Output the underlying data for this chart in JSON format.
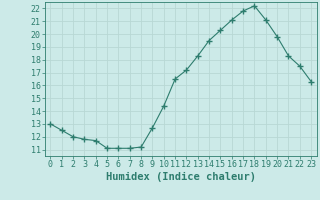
{
  "x": [
    0,
    1,
    2,
    3,
    4,
    5,
    6,
    7,
    8,
    9,
    10,
    11,
    12,
    13,
    14,
    15,
    16,
    17,
    18,
    19,
    20,
    21,
    22,
    23
  ],
  "y": [
    13.0,
    12.5,
    12.0,
    11.8,
    11.7,
    11.1,
    11.1,
    11.1,
    11.2,
    12.7,
    14.4,
    16.5,
    17.2,
    18.3,
    19.5,
    20.3,
    21.1,
    21.8,
    22.2,
    21.1,
    19.8,
    18.3,
    17.5,
    16.3
  ],
  "line_color": "#2e7d6e",
  "marker": "+",
  "marker_size": 4,
  "bg_color": "#cceae8",
  "grid_color": "#b8d8d4",
  "xlabel": "Humidex (Indice chaleur)",
  "xlim": [
    -0.5,
    23.5
  ],
  "ylim": [
    10.5,
    22.5
  ],
  "yticks": [
    11,
    12,
    13,
    14,
    15,
    16,
    17,
    18,
    19,
    20,
    21,
    22
  ],
  "xticks": [
    0,
    1,
    2,
    3,
    4,
    5,
    6,
    7,
    8,
    9,
    10,
    11,
    12,
    13,
    14,
    15,
    16,
    17,
    18,
    19,
    20,
    21,
    22,
    23
  ],
  "xtick_labels": [
    "0",
    "1",
    "2",
    "3",
    "4",
    "5",
    "6",
    "7",
    "8",
    "9",
    "10",
    "11",
    "12",
    "13",
    "14",
    "15",
    "16",
    "17",
    "18",
    "19",
    "20",
    "21",
    "22",
    "23"
  ],
  "xlabel_fontsize": 7.5,
  "tick_fontsize": 6.0
}
